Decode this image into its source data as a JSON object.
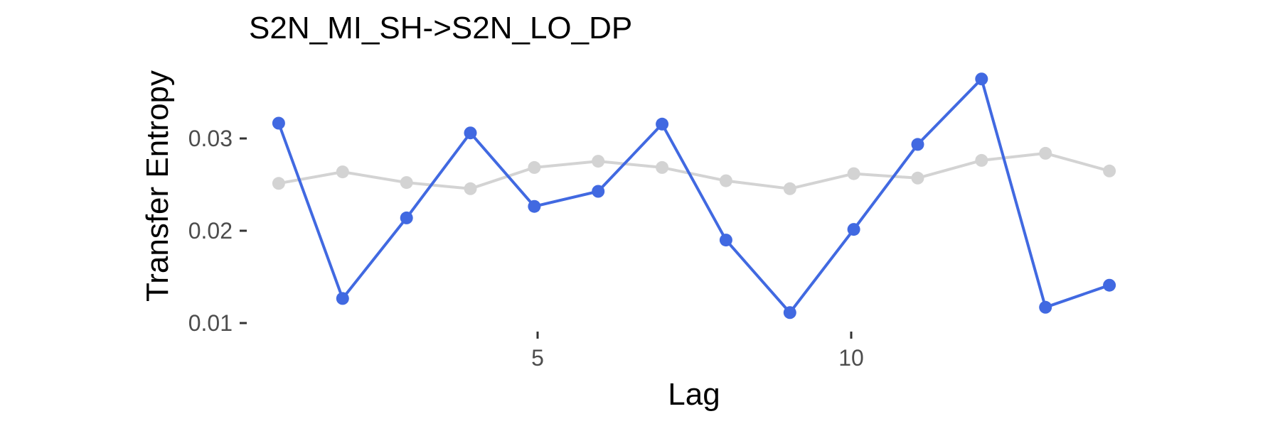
{
  "chart_data": {
    "type": "line",
    "title": "S2N_MI_SH->S2N_LO_DP",
    "xlabel": "Lag",
    "ylabel": "Transfer Entropy",
    "xlim": [
      0.6,
      14.4
    ],
    "ylim": [
      0.0085,
      0.0385
    ],
    "x_ticks": [
      5,
      10
    ],
    "x_tick_labels": [
      "5",
      "10"
    ],
    "y_ticks": [
      0.01,
      0.02,
      0.03
    ],
    "y_tick_labels": [
      "0.01",
      "0.02",
      "0.03"
    ],
    "grid": false,
    "legend": "none",
    "x": [
      1,
      2,
      3,
      4,
      5,
      6,
      7,
      8,
      9,
      10,
      11,
      12,
      13,
      14
    ],
    "series": [
      {
        "color": "#d3d3d3",
        "values": [
          0.025,
          0.0263,
          0.0251,
          0.0244,
          0.0268,
          0.0275,
          0.0268,
          0.0253,
          0.0244,
          0.0261,
          0.0256,
          0.0276,
          0.0284,
          0.0264
        ]
      },
      {
        "color": "#4169e1",
        "values": [
          0.0318,
          0.012,
          0.0211,
          0.0307,
          0.0224,
          0.0241,
          0.0317,
          0.0186,
          0.0104,
          0.0198,
          0.0294,
          0.0368,
          0.011,
          0.0135
        ]
      }
    ]
  }
}
